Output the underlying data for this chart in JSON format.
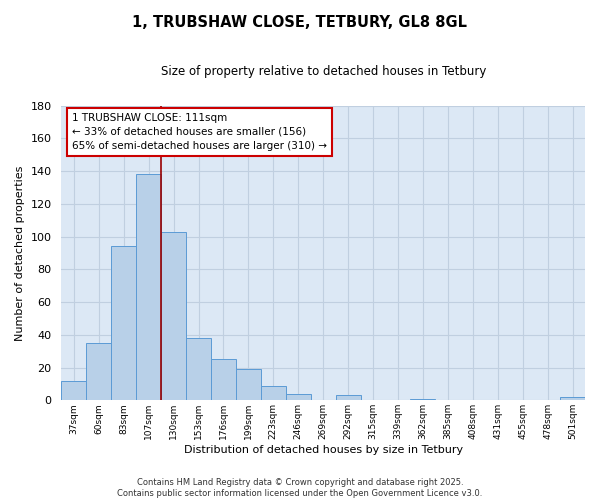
{
  "title": "1, TRUBSHAW CLOSE, TETBURY, GL8 8GL",
  "subtitle": "Size of property relative to detached houses in Tetbury",
  "xlabel": "Distribution of detached houses by size in Tetbury",
  "ylabel": "Number of detached properties",
  "bar_color": "#b8d0e8",
  "bar_edge_color": "#5b9bd5",
  "background_color": "#ffffff",
  "plot_bg_color": "#dce8f5",
  "grid_color": "#c0cfe0",
  "categories": [
    "37sqm",
    "60sqm",
    "83sqm",
    "107sqm",
    "130sqm",
    "153sqm",
    "176sqm",
    "199sqm",
    "223sqm",
    "246sqm",
    "269sqm",
    "292sqm",
    "315sqm",
    "339sqm",
    "362sqm",
    "385sqm",
    "408sqm",
    "431sqm",
    "455sqm",
    "478sqm",
    "501sqm"
  ],
  "values": [
    12,
    35,
    94,
    138,
    103,
    38,
    25,
    19,
    9,
    4,
    0,
    3,
    0,
    0,
    1,
    0,
    0,
    0,
    0,
    0,
    2
  ],
  "vline_x_index": 3,
  "vline_color": "#990000",
  "annotation_title": "1 TRUBSHAW CLOSE: 111sqm",
  "annotation_line1": "← 33% of detached houses are smaller (156)",
  "annotation_line2": "65% of semi-detached houses are larger (310) →",
  "annotation_box_color": "#ffffff",
  "annotation_box_edge": "#cc0000",
  "ylim": [
    0,
    180
  ],
  "yticks": [
    0,
    20,
    40,
    60,
    80,
    100,
    120,
    140,
    160,
    180
  ],
  "footer_line1": "Contains HM Land Registry data © Crown copyright and database right 2025.",
  "footer_line2": "Contains public sector information licensed under the Open Government Licence v3.0."
}
